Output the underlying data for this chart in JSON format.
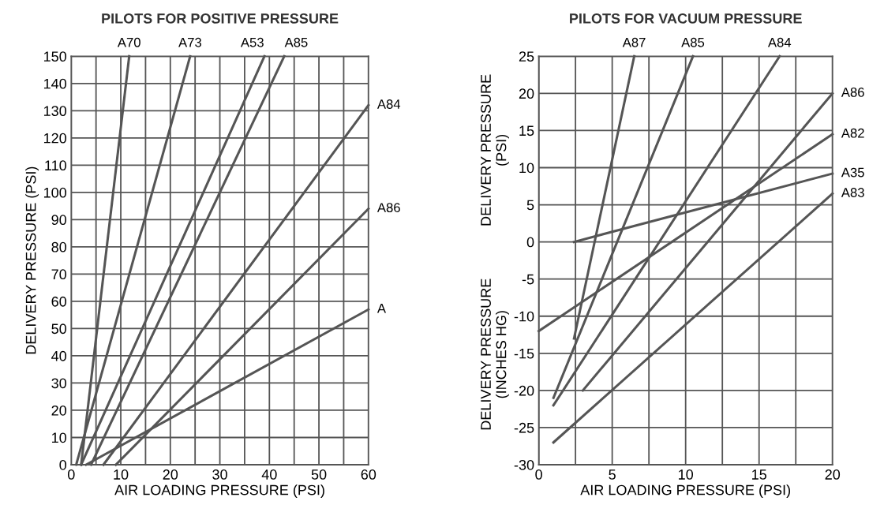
{
  "chart_data": [
    {
      "type": "line",
      "title": "PILOTS FOR POSITIVE PRESSURE",
      "xlabel": "AIR LOADING PRESSURE (PSI)",
      "ylabel": "DELIVERY PRESSURE (PSI)",
      "series": [
        {
          "name": "A70",
          "color": "#555555",
          "x": [
            2,
            11.7
          ],
          "values": [
            0,
            150
          ]
        },
        {
          "name": "A73",
          "color": "#555555",
          "x": [
            1,
            24
          ],
          "values": [
            0,
            150
          ]
        },
        {
          "name": "A53",
          "color": "#555555",
          "x": [
            2,
            39
          ],
          "values": [
            0,
            150
          ]
        },
        {
          "name": "A85",
          "color": "#555555",
          "x": [
            4,
            43
          ],
          "values": [
            0,
            150
          ]
        },
        {
          "name": "A84",
          "color": "#555555",
          "x": [
            6.5,
            60
          ],
          "values": [
            0,
            132
          ]
        },
        {
          "name": "A86",
          "color": "#555555",
          "x": [
            9,
            60
          ],
          "values": [
            0,
            94
          ]
        },
        {
          "name": "A",
          "color": "#555555",
          "x": [
            3,
            60
          ],
          "values": [
            0,
            57
          ]
        }
      ],
      "xlim": [
        0,
        60
      ],
      "ylim": [
        0,
        150
      ],
      "xticks": [
        0,
        {
          "value": 5,
          "label": null
        },
        10,
        {
          "value": 15,
          "label": null
        },
        20,
        {
          "value": 25,
          "label": null
        },
        30,
        {
          "value": 35,
          "label": null
        },
        40,
        {
          "value": 45,
          "label": null
        },
        50,
        {
          "value": 55,
          "label": null
        },
        60
      ],
      "yticks": [
        0,
        10,
        20,
        30,
        40,
        50,
        60,
        70,
        80,
        90,
        100,
        110,
        120,
        130,
        140,
        150
      ],
      "grid": true,
      "legend": false,
      "marker": "none",
      "line_style": "solid"
    },
    {
      "type": "line",
      "title": "PILOTS FOR VACUUM PRESSURE",
      "xlabel": "AIR LOADING PRESSURE (PSI)",
      "ylabel": "DELIVERY PRESSURE\n(PSI)",
      "annotations": [
        "DELIVERY PRESSURE\n(INCHES HG)"
      ],
      "series": [
        {
          "name": "A87",
          "color": "#555555",
          "x": [
            2.4,
            6.5
          ],
          "values": [
            -13,
            25
          ]
        },
        {
          "name": "A85",
          "color": "#555555",
          "x": [
            1,
            10.5
          ],
          "values": [
            -21,
            25
          ]
        },
        {
          "name": "A84",
          "color": "#555555",
          "x": [
            1,
            16.4
          ],
          "values": [
            -22,
            25
          ]
        },
        {
          "name": "A86",
          "color": "#555555",
          "x": [
            3,
            20
          ],
          "values": [
            -20,
            20
          ]
        },
        {
          "name": "A82",
          "color": "#555555",
          "x": [
            0,
            20
          ],
          "values": [
            -12,
            14.5
          ]
        },
        {
          "name": "A35",
          "color": "#555555",
          "x": [
            2.4,
            20
          ],
          "values": [
            0,
            9.2
          ]
        },
        {
          "name": "A83",
          "color": "#555555",
          "x": [
            1,
            20
          ],
          "values": [
            -27,
            6.5
          ]
        }
      ],
      "xlim": [
        0,
        20
      ],
      "ylim": [
        -30,
        25
      ],
      "xticks": [
        0,
        {
          "value": 2.5,
          "label": null
        },
        5,
        {
          "value": 7.5,
          "label": null
        },
        10,
        {
          "value": 12.5,
          "label": null
        },
        15,
        {
          "value": 17.5,
          "label": null
        },
        20
      ],
      "yticks": [
        -30,
        -25,
        -20,
        -15,
        -10,
        -5,
        0,
        5,
        10,
        15,
        20,
        25
      ],
      "grid": true,
      "legend": false,
      "marker": "none",
      "line_style": "solid"
    }
  ]
}
